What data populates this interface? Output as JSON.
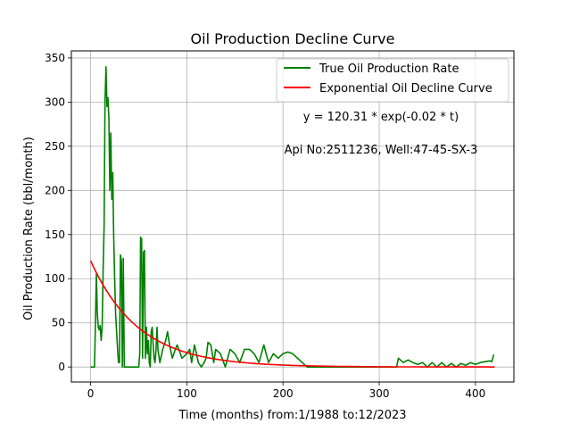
{
  "chart_data": {
    "type": "line",
    "title": "Oil Production Decline Curve",
    "xlabel": "Time (months) from:1/1988 to:12/2023",
    "ylabel": "Oil Production Rate (bbl/month)",
    "xlim": [
      -20,
      440
    ],
    "ylim": [
      -17,
      358
    ],
    "xticks": [
      0,
      100,
      200,
      300,
      400
    ],
    "yticks": [
      0,
      50,
      100,
      150,
      200,
      250,
      300,
      350
    ],
    "grid": true,
    "legend_position": "top-right",
    "annotations": [
      "y = 120.31 * exp(-0.02 * t)",
      "Api No:2511236, Well:47-45-SX-3"
    ],
    "series": [
      {
        "name": "True Oil Production Rate",
        "color": "#008000",
        "x": [
          0,
          4,
          5,
          6,
          7,
          8,
          9,
          10,
          11,
          12,
          13,
          14,
          15,
          16,
          17,
          18,
          19,
          20,
          21,
          22,
          23,
          24,
          25,
          26,
          27,
          28,
          29,
          30,
          31,
          32,
          33,
          34,
          35,
          36,
          37,
          38,
          39,
          40,
          45,
          50,
          51,
          52,
          53,
          54,
          55,
          56,
          57,
          58,
          59,
          60,
          61,
          62,
          63,
          64,
          65,
          66,
          67,
          68,
          69,
          70,
          72,
          75,
          78,
          80,
          82,
          85,
          88,
          90,
          95,
          100,
          103,
          105,
          108,
          110,
          112,
          115,
          118,
          120,
          122,
          125,
          128,
          130,
          135,
          140,
          145,
          150,
          155,
          160,
          165,
          170,
          175,
          180,
          185,
          190,
          195,
          200,
          205,
          210,
          215,
          220,
          225,
          230,
          240,
          250,
          260,
          270,
          280,
          290,
          300,
          310,
          318,
          320,
          325,
          330,
          335,
          340,
          345,
          350,
          355,
          360,
          365,
          370,
          375,
          380,
          385,
          390,
          395,
          400,
          405,
          410,
          415,
          417,
          418,
          419
        ],
        "y": [
          0,
          0,
          50,
          105,
          60,
          45,
          42,
          47,
          30,
          45,
          110,
          160,
          300,
          340,
          295,
          305,
          280,
          200,
          265,
          190,
          220,
          150,
          100,
          60,
          40,
          20,
          5,
          5,
          127,
          120,
          0,
          123,
          0,
          0,
          0,
          0,
          0,
          0,
          0,
          0,
          15,
          147,
          145,
          10,
          130,
          132,
          10,
          45,
          15,
          30,
          5,
          0,
          40,
          45,
          25,
          10,
          5,
          20,
          45,
          20,
          5,
          20,
          30,
          40,
          25,
          10,
          20,
          25,
          10,
          15,
          20,
          5,
          25,
          15,
          5,
          0,
          5,
          10,
          28,
          25,
          5,
          20,
          15,
          0,
          20,
          15,
          5,
          20,
          20,
          15,
          5,
          25,
          5,
          15,
          10,
          15,
          17,
          15,
          10,
          5,
          0,
          0,
          0,
          0,
          0,
          0,
          0,
          0,
          0,
          0,
          0,
          10,
          5,
          8,
          5,
          3,
          5,
          0,
          5,
          0,
          5,
          0,
          4,
          0,
          4,
          2,
          5,
          3,
          5,
          6,
          7,
          6,
          10,
          14
        ]
      },
      {
        "name": "Exponential Oil Decline Curve",
        "color": "#ff0000",
        "function": "y = 120.31 * exp(-0.02 * t)",
        "a": 120.31,
        "b": 0.02,
        "t_range": [
          0,
          420
        ]
      }
    ]
  }
}
